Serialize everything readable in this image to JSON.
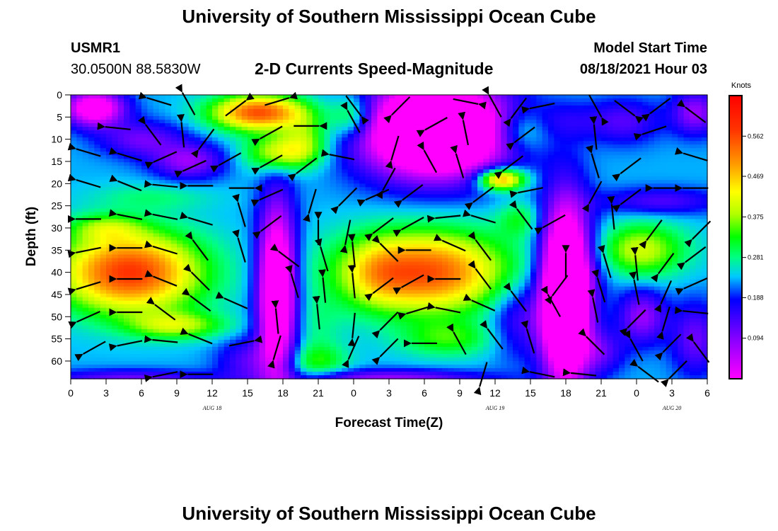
{
  "header": {
    "title_top": "University of Southern Mississippi Ocean Cube",
    "title_bottom": "University of Southern Mississippi Ocean Cube",
    "station_id": "USMR1",
    "station_coords": "30.0500N  88.5830W",
    "subtitle": "2-D Currents Speed-Magnitude",
    "model_start_label": "Model Start Time",
    "model_start_value": "08/18/2021 Hour 03"
  },
  "chart_data": {
    "type": "heatmap",
    "title": "2-D Currents Speed-Magnitude",
    "xlabel": "Forecast Time(Z)",
    "ylabel": "Depth (ft)",
    "x_unit": "hours (Z)",
    "xlim": [
      0,
      54
    ],
    "ylim": [
      0,
      64
    ],
    "y_inverted": true,
    "x_ticks": [
      0,
      3,
      6,
      9,
      12,
      15,
      18,
      21,
      24,
      27,
      30,
      33,
      36,
      39,
      42,
      45,
      48,
      51,
      54
    ],
    "x_tick_labels": [
      "0",
      "3",
      "6",
      "9",
      "12",
      "15",
      "18",
      "21",
      "0",
      "3",
      "6",
      "9",
      "12",
      "15",
      "18",
      "21",
      "0",
      "3",
      "6"
    ],
    "y_ticks": [
      0,
      5,
      10,
      15,
      20,
      25,
      30,
      35,
      40,
      45,
      50,
      55,
      60
    ],
    "y_tick_labels": [
      "0",
      "5",
      "10",
      "15",
      "20",
      "25",
      "30",
      "35",
      "40",
      "45",
      "50",
      "55",
      "60"
    ],
    "day_labels": [
      {
        "x": 12,
        "text": "AUG 18"
      },
      {
        "x": 36,
        "text": "AUG 19"
      },
      {
        "x": 51,
        "text": "AUG 20"
      }
    ],
    "colorbar": {
      "title": "Knots",
      "range": [
        0.0,
        0.656
      ],
      "tick_values": [
        0.094,
        0.188,
        0.281,
        0.375,
        0.469,
        0.562
      ],
      "tick_labels": [
        "0.094",
        "0.188",
        "0.281",
        "0.375",
        "0.469",
        "0.562"
      ]
    },
    "speed_features": [
      {
        "x": 2,
        "y": 3,
        "rx": 2.5,
        "ry": 4,
        "v": -0.3
      },
      {
        "x": 6,
        "y": 10,
        "rx": 3.5,
        "ry": 4,
        "v": -0.12
      },
      {
        "x": 10,
        "y": 15,
        "rx": 3,
        "ry": 4,
        "v": -0.15
      },
      {
        "x": 7,
        "y": 23,
        "rx": 5,
        "ry": 3,
        "v": 0.05
      },
      {
        "x": 16,
        "y": 4,
        "rx": 4,
        "ry": 4,
        "v": 0.33
      },
      {
        "x": 18,
        "y": 13,
        "rx": 3,
        "ry": 4,
        "v": 0.2
      },
      {
        "x": 20,
        "y": 9,
        "rx": 2,
        "ry": 5,
        "v": 0.1
      },
      {
        "x": 5,
        "y": 40,
        "rx": 6,
        "ry": 9,
        "v": 0.35
      },
      {
        "x": 9,
        "y": 52,
        "rx": 4,
        "ry": 3,
        "v": 0.15
      },
      {
        "x": 3,
        "y": 30,
        "rx": 3,
        "ry": 3,
        "v": 0.1
      },
      {
        "x": 17.5,
        "y": 44,
        "rx": 1.6,
        "ry": 19,
        "v": -0.38
      },
      {
        "x": 21,
        "y": 52,
        "rx": 2,
        "ry": 6,
        "v": 0.04
      },
      {
        "x": 21,
        "y": 60,
        "rx": 2.5,
        "ry": 4,
        "v": 0.1
      },
      {
        "x": 15,
        "y": 60,
        "rx": 2.5,
        "ry": 5,
        "v": -0.1
      },
      {
        "x": 30,
        "y": 40,
        "rx": 7,
        "ry": 9,
        "v": 0.33
      },
      {
        "x": 32,
        "y": 55,
        "rx": 4,
        "ry": 4,
        "v": 0.1
      },
      {
        "x": 26,
        "y": 40,
        "rx": 2.5,
        "ry": 7,
        "v": 0.06
      },
      {
        "x": 31,
        "y": 8,
        "rx": 6,
        "ry": 10,
        "v": -0.55
      },
      {
        "x": 24,
        "y": 5,
        "rx": 2,
        "ry": 5,
        "v": 0.15
      },
      {
        "x": 38,
        "y": 8,
        "rx": 2.5,
        "ry": 5,
        "v": 0.12
      },
      {
        "x": 42,
        "y": 6,
        "rx": 3,
        "ry": 4,
        "v": -0.05
      },
      {
        "x": 36.5,
        "y": 19,
        "rx": 2,
        "ry": 2.5,
        "v": 0.3
      },
      {
        "x": 38,
        "y": 28,
        "rx": 1.8,
        "ry": 4,
        "v": 0.08
      },
      {
        "x": 38,
        "y": 50,
        "rx": 2.5,
        "ry": 9,
        "v": -0.1
      },
      {
        "x": 42,
        "y": 45,
        "rx": 2,
        "ry": 19,
        "v": -0.55
      },
      {
        "x": 45,
        "y": 36,
        "rx": 2.5,
        "ry": 8,
        "v": -0.05
      },
      {
        "x": 48,
        "y": 35,
        "rx": 4,
        "ry": 6,
        "v": 0.18
      },
      {
        "x": 47,
        "y": 6,
        "rx": 3,
        "ry": 5,
        "v": -0.1
      },
      {
        "x": 53,
        "y": 4,
        "rx": 2,
        "ry": 5,
        "v": -0.15
      },
      {
        "x": 50,
        "y": 24,
        "rx": 5,
        "ry": 3,
        "v": -0.1
      },
      {
        "x": 48.5,
        "y": 50,
        "rx": 2,
        "ry": 6,
        "v": -0.15
      },
      {
        "x": 53,
        "y": 55,
        "rx": 2,
        "ry": 8,
        "v": -0.12
      },
      {
        "x": 45,
        "y": 58,
        "rx": 2,
        "ry": 5,
        "v": -0.1
      },
      {
        "x": 27,
        "y": 64,
        "rx": 8,
        "ry": 2,
        "v": -0.15
      },
      {
        "x": 5,
        "y": 64,
        "rx": 7,
        "ry": 2,
        "v": -0.12
      }
    ],
    "background_speed": 0.23,
    "vectors": [
      {
        "x": 7.5,
        "y": 1.5,
        "u": 1,
        "v": 0.3
      },
      {
        "x": 10,
        "y": 2,
        "u": 0.5,
        "v": 0.9
      },
      {
        "x": 14,
        "y": 3,
        "u": -0.8,
        "v": 0.6
      },
      {
        "x": 17.5,
        "y": 1.5,
        "u": -1,
        "v": 0.3
      },
      {
        "x": 24,
        "y": 2.5,
        "u": -0.6,
        "v": -0.8
      },
      {
        "x": 28,
        "y": 2.5,
        "u": 0.7,
        "v": -0.7
      },
      {
        "x": 33.5,
        "y": 1.5,
        "u": -1,
        "v": -0.2
      },
      {
        "x": 36,
        "y": 2.5,
        "u": 0.5,
        "v": 0.9
      },
      {
        "x": 38,
        "y": 3,
        "u": 0.6,
        "v": -0.8
      },
      {
        "x": 40,
        "y": 2.5,
        "u": 1,
        "v": -0.2
      },
      {
        "x": 44.5,
        "y": 2.5,
        "u": -0.5,
        "v": -0.9
      },
      {
        "x": 47,
        "y": 3,
        "u": -0.8,
        "v": -0.6
      },
      {
        "x": 50,
        "y": 2.5,
        "u": 0.8,
        "v": -0.6
      },
      {
        "x": 53,
        "y": 4.5,
        "u": 0.8,
        "v": 0.6
      },
      {
        "x": 4,
        "y": 7.5,
        "u": 1,
        "v": 0.1
      },
      {
        "x": 7,
        "y": 9,
        "u": 0.6,
        "v": 0.8
      },
      {
        "x": 9.5,
        "y": 9,
        "u": 0.1,
        "v": 1
      },
      {
        "x": 11.5,
        "y": 10,
        "u": 0.6,
        "v": -0.8
      },
      {
        "x": 17,
        "y": 8.5,
        "u": 0.9,
        "v": -0.5
      },
      {
        "x": 20,
        "y": 7,
        "u": -1,
        "v": 0
      },
      {
        "x": 24,
        "y": 6,
        "u": 0.5,
        "v": 0.9
      },
      {
        "x": 27.5,
        "y": 12,
        "u": 0.3,
        "v": -1
      },
      {
        "x": 31,
        "y": 6.5,
        "u": 0.9,
        "v": -0.5
      },
      {
        "x": 33.5,
        "y": 8.5,
        "u": 0.2,
        "v": 1
      },
      {
        "x": 38.5,
        "y": 9,
        "u": 0.8,
        "v": -0.6
      },
      {
        "x": 44.5,
        "y": 9.5,
        "u": 0.1,
        "v": 1
      },
      {
        "x": 49.5,
        "y": 8,
        "u": 0.9,
        "v": -0.3
      },
      {
        "x": 1.5,
        "y": 13,
        "u": 1,
        "v": 0.3
      },
      {
        "x": 5,
        "y": 14,
        "u": 1,
        "v": 0.3
      },
      {
        "x": 8,
        "y": 14,
        "u": 0.9,
        "v": -0.4
      },
      {
        "x": 10.5,
        "y": 16,
        "u": 0.9,
        "v": -0.4
      },
      {
        "x": 13.5,
        "y": 14.5,
        "u": 0.9,
        "v": -0.5
      },
      {
        "x": 17,
        "y": 15,
        "u": 0.9,
        "v": -0.5
      },
      {
        "x": 20,
        "y": 16,
        "u": 0.8,
        "v": -0.6
      },
      {
        "x": 23,
        "y": 14,
        "u": 1,
        "v": 0.2
      },
      {
        "x": 27,
        "y": 19,
        "u": 0.5,
        "v": -0.9
      },
      {
        "x": 30.5,
        "y": 15,
        "u": 0.5,
        "v": 0.9
      },
      {
        "x": 33,
        "y": 16,
        "u": 0.3,
        "v": 1
      },
      {
        "x": 37.5,
        "y": 15.5,
        "u": 0.8,
        "v": -0.6
      },
      {
        "x": 44.5,
        "y": 16,
        "u": 0.3,
        "v": 1
      },
      {
        "x": 47.5,
        "y": 16,
        "u": 0.8,
        "v": -0.6
      },
      {
        "x": 53,
        "y": 14,
        "u": 1,
        "v": 0.3
      },
      {
        "x": 1.5,
        "y": 20,
        "u": 1,
        "v": 0.3
      },
      {
        "x": 5,
        "y": 20.5,
        "u": 1,
        "v": 0.4
      },
      {
        "x": 8,
        "y": 20.5,
        "u": 1,
        "v": 0.1
      },
      {
        "x": 11,
        "y": 20.5,
        "u": 1,
        "v": 0
      },
      {
        "x": 14.5,
        "y": 21,
        "u": -1,
        "v": 0
      },
      {
        "x": 17,
        "y": 22.5,
        "u": 0.9,
        "v": -0.4
      },
      {
        "x": 20.5,
        "y": 24,
        "u": 0.3,
        "v": -1
      },
      {
        "x": 23.5,
        "y": 23,
        "u": 0.7,
        "v": -0.7
      },
      {
        "x": 26,
        "y": 22.5,
        "u": 0.9,
        "v": -0.4
      },
      {
        "x": 29,
        "y": 22,
        "u": 0.8,
        "v": -0.6
      },
      {
        "x": 35,
        "y": 22.5,
        "u": 0.8,
        "v": -0.6
      },
      {
        "x": 39,
        "y": 21.5,
        "u": 1,
        "v": -0.2
      },
      {
        "x": 44.5,
        "y": 22,
        "u": 0.5,
        "v": -0.9
      },
      {
        "x": 47.5,
        "y": 23,
        "u": 0.8,
        "v": -0.6
      },
      {
        "x": 50.5,
        "y": 21,
        "u": 1,
        "v": 0
      },
      {
        "x": 53,
        "y": 21,
        "u": 1,
        "v": 0
      },
      {
        "x": 1.5,
        "y": 28,
        "u": 1,
        "v": 0
      },
      {
        "x": 5,
        "y": 27.5,
        "u": 1,
        "v": 0.2
      },
      {
        "x": 8,
        "y": 27.5,
        "u": 1,
        "v": 0.2
      },
      {
        "x": 11,
        "y": 28.5,
        "u": 1,
        "v": 0.3
      },
      {
        "x": 14.5,
        "y": 27,
        "u": 0.3,
        "v": 1
      },
      {
        "x": 17,
        "y": 29,
        "u": 0.8,
        "v": -0.6
      },
      {
        "x": 21,
        "y": 31,
        "u": 0,
        "v": 1
      },
      {
        "x": 23.5,
        "y": 31,
        "u": 0.2,
        "v": -1
      },
      {
        "x": 26.5,
        "y": 29.5,
        "u": 0.8,
        "v": -0.6
      },
      {
        "x": 29,
        "y": 29,
        "u": 0.9,
        "v": -0.5
      },
      {
        "x": 32,
        "y": 27.5,
        "u": 1,
        "v": -0.1
      },
      {
        "x": 35,
        "y": 28,
        "u": 1,
        "v": 0.3
      },
      {
        "x": 38.5,
        "y": 28,
        "u": 0.6,
        "v": 0.8
      },
      {
        "x": 41,
        "y": 28.5,
        "u": 0.9,
        "v": -0.5
      },
      {
        "x": 46,
        "y": 27.5,
        "u": 0.1,
        "v": 1
      },
      {
        "x": 49.5,
        "y": 30.5,
        "u": 0.6,
        "v": -0.8
      },
      {
        "x": 53.5,
        "y": 30.5,
        "u": 0.7,
        "v": -0.7
      },
      {
        "x": 1.5,
        "y": 35,
        "u": 1,
        "v": -0.2
      },
      {
        "x": 5,
        "y": 34.5,
        "u": 1,
        "v": 0
      },
      {
        "x": 8,
        "y": 35,
        "u": 1,
        "v": 0.3
      },
      {
        "x": 11,
        "y": 35,
        "u": 0.6,
        "v": 0.8
      },
      {
        "x": 14.5,
        "y": 35,
        "u": 0.3,
        "v": 1
      },
      {
        "x": 18.5,
        "y": 37,
        "u": 0.8,
        "v": 0.6
      },
      {
        "x": 21.5,
        "y": 37,
        "u": 0.3,
        "v": 1
      },
      {
        "x": 24,
        "y": 36,
        "u": 0.1,
        "v": 1
      },
      {
        "x": 27,
        "y": 35.5,
        "u": 0.7,
        "v": 0.7
      },
      {
        "x": 29.5,
        "y": 35,
        "u": 1,
        "v": 0
      },
      {
        "x": 32.5,
        "y": 34,
        "u": 0.9,
        "v": 0.4
      },
      {
        "x": 35,
        "y": 35,
        "u": 0.6,
        "v": 0.8
      },
      {
        "x": 42,
        "y": 38.5,
        "u": 0,
        "v": 1
      },
      {
        "x": 45.5,
        "y": 38.5,
        "u": 0.3,
        "v": 1
      },
      {
        "x": 48,
        "y": 39,
        "u": 0.1,
        "v": 1
      },
      {
        "x": 50.5,
        "y": 38,
        "u": 0.6,
        "v": -0.8
      },
      {
        "x": 53,
        "y": 36,
        "u": 0.8,
        "v": -0.6
      },
      {
        "x": 1.5,
        "y": 43,
        "u": 1,
        "v": -0.3
      },
      {
        "x": 5,
        "y": 41.5,
        "u": 1,
        "v": 0
      },
      {
        "x": 8,
        "y": 42,
        "u": 1,
        "v": 0.4
      },
      {
        "x": 11,
        "y": 42,
        "u": 0.7,
        "v": 0.7
      },
      {
        "x": 19,
        "y": 43,
        "u": 0.3,
        "v": 1
      },
      {
        "x": 21.5,
        "y": 44,
        "u": 0.1,
        "v": 1
      },
      {
        "x": 24,
        "y": 43,
        "u": 0.1,
        "v": 1
      },
      {
        "x": 26.5,
        "y": 43,
        "u": 0.8,
        "v": -0.6
      },
      {
        "x": 29,
        "y": 42,
        "u": 0.9,
        "v": -0.5
      },
      {
        "x": 32,
        "y": 41.5,
        "u": 1,
        "v": 0
      },
      {
        "x": 35,
        "y": 41.5,
        "u": 0.6,
        "v": 0.8
      },
      {
        "x": 41.5,
        "y": 43,
        "u": 0.6,
        "v": -0.8
      },
      {
        "x": 45,
        "y": 44,
        "u": 0.3,
        "v": 1
      },
      {
        "x": 48,
        "y": 44.5,
        "u": 0.2,
        "v": 1
      },
      {
        "x": 50.5,
        "y": 44.5,
        "u": 0.4,
        "v": -0.9
      },
      {
        "x": 53,
        "y": 42.5,
        "u": 0.9,
        "v": -0.4
      },
      {
        "x": 1.5,
        "y": 50,
        "u": 0.9,
        "v": -0.4
      },
      {
        "x": 5,
        "y": 49,
        "u": 1,
        "v": 0
      },
      {
        "x": 8,
        "y": 49,
        "u": 0.8,
        "v": 0.6
      },
      {
        "x": 11,
        "y": 47,
        "u": 0.8,
        "v": 0.6
      },
      {
        "x": 14,
        "y": 47,
        "u": 0.9,
        "v": 0.4
      },
      {
        "x": 17.5,
        "y": 51,
        "u": 0.1,
        "v": 1
      },
      {
        "x": 21,
        "y": 50,
        "u": 0.1,
        "v": 1
      },
      {
        "x": 24,
        "y": 52,
        "u": 0.1,
        "v": -1
      },
      {
        "x": 27,
        "y": 51,
        "u": 0.7,
        "v": -0.7
      },
      {
        "x": 29.5,
        "y": 48.5,
        "u": 1,
        "v": -0.3
      },
      {
        "x": 32,
        "y": 48.5,
        "u": 1,
        "v": 0.2
      },
      {
        "x": 35,
        "y": 47.5,
        "u": 0.9,
        "v": 0.4
      },
      {
        "x": 38,
        "y": 46.5,
        "u": 0.6,
        "v": 0.8
      },
      {
        "x": 41,
        "y": 47.5,
        "u": 0.5,
        "v": 0.9
      },
      {
        "x": 44.5,
        "y": 48.5,
        "u": 0.2,
        "v": 1
      },
      {
        "x": 48,
        "y": 50.5,
        "u": 0.7,
        "v": -0.7
      },
      {
        "x": 50.5,
        "y": 50.5,
        "u": 0.3,
        "v": -1
      },
      {
        "x": 53,
        "y": 49,
        "u": 1,
        "v": 0.1
      },
      {
        "x": 2,
        "y": 57,
        "u": 0.9,
        "v": -0.5
      },
      {
        "x": 5,
        "y": 56,
        "u": 1,
        "v": -0.2
      },
      {
        "x": 8,
        "y": 55.5,
        "u": 1,
        "v": 0.1
      },
      {
        "x": 11,
        "y": 55,
        "u": 1,
        "v": 0.4
      },
      {
        "x": 14.5,
        "y": 56,
        "u": -1,
        "v": 0.2
      },
      {
        "x": 17.5,
        "y": 57,
        "u": 0.3,
        "v": -1
      },
      {
        "x": 24,
        "y": 57,
        "u": 0.4,
        "v": -0.9
      },
      {
        "x": 27,
        "y": 57,
        "u": 0.7,
        "v": -0.7
      },
      {
        "x": 30,
        "y": 56,
        "u": 1,
        "v": 0
      },
      {
        "x": 33,
        "y": 56,
        "u": 0.5,
        "v": 0.9
      },
      {
        "x": 36,
        "y": 55,
        "u": 0.6,
        "v": 0.8
      },
      {
        "x": 39,
        "y": 55.5,
        "u": 0.3,
        "v": 1
      },
      {
        "x": 44.5,
        "y": 56.5,
        "u": 0.7,
        "v": 0.7
      },
      {
        "x": 48,
        "y": 57.5,
        "u": 0.5,
        "v": 0.9
      },
      {
        "x": 51,
        "y": 56,
        "u": 0.7,
        "v": -0.7
      },
      {
        "x": 53.5,
        "y": 58,
        "u": 0.6,
        "v": 0.8
      },
      {
        "x": 8,
        "y": 63,
        "u": 1,
        "v": -0.2
      },
      {
        "x": 11,
        "y": 63,
        "u": 1,
        "v": 0
      },
      {
        "x": 35,
        "y": 63,
        "u": 0.3,
        "v": -1
      },
      {
        "x": 40,
        "y": 63,
        "u": 1,
        "v": 0.2
      },
      {
        "x": 43.5,
        "y": 63,
        "u": 1,
        "v": 0.1
      },
      {
        "x": 49,
        "y": 63,
        "u": 0.8,
        "v": 0.6
      },
      {
        "x": 51.5,
        "y": 62,
        "u": 0.7,
        "v": -0.7
      }
    ]
  }
}
